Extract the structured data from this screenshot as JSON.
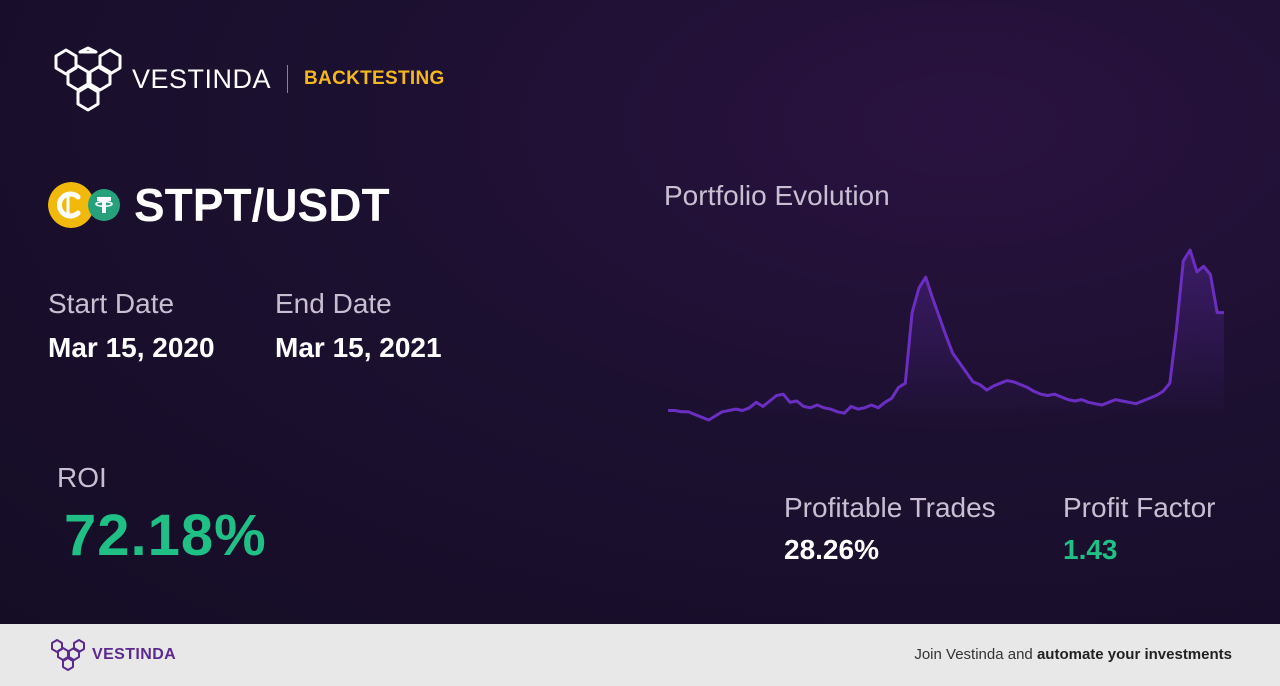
{
  "header": {
    "brand": "VESTINDA",
    "tag": "BACKTESTING"
  },
  "pair": {
    "text": "STPT/USDT",
    "icons": [
      "stpt-coin-icon",
      "tether-coin-icon"
    ],
    "colors": {
      "stpt": "#f0b90b",
      "tether": "#26a17b"
    }
  },
  "dates": {
    "start_label": "Start Date",
    "start_value": "Mar 15, 2020",
    "end_label": "End Date",
    "end_value": "Mar 15, 2021"
  },
  "roi": {
    "label": "ROI",
    "value": "72.18%"
  },
  "chart": {
    "title": "Portfolio Evolution"
  },
  "chart_data": {
    "type": "line",
    "title": "Portfolio Evolution",
    "xlabel": "",
    "ylabel": "",
    "grid": false,
    "values": [
      1.0,
      1.0,
      0.99,
      0.99,
      0.97,
      0.95,
      0.93,
      0.96,
      0.99,
      1.0,
      1.01,
      1.0,
      1.02,
      1.06,
      1.03,
      1.07,
      1.11,
      1.12,
      1.06,
      1.07,
      1.03,
      1.02,
      1.04,
      1.02,
      1.01,
      0.99,
      0.98,
      1.03,
      1.01,
      1.02,
      1.04,
      1.02,
      1.06,
      1.09,
      1.17,
      1.2,
      1.72,
      1.9,
      1.98,
      1.83,
      1.69,
      1.55,
      1.42,
      1.35,
      1.28,
      1.21,
      1.19,
      1.15,
      1.18,
      1.2,
      1.22,
      1.21,
      1.19,
      1.17,
      1.14,
      1.12,
      1.11,
      1.12,
      1.1,
      1.08,
      1.07,
      1.08,
      1.06,
      1.05,
      1.04,
      1.06,
      1.08,
      1.07,
      1.06,
      1.05,
      1.07,
      1.09,
      1.11,
      1.14,
      1.2,
      1.6,
      2.1,
      2.18,
      2.02,
      2.06,
      2.0,
      1.72,
      1.72
    ],
    "color": "#6a2fc2"
  },
  "stats": {
    "profitable_label": "Profitable Trades",
    "profitable_value": "28.26%",
    "factor_label": "Profit Factor",
    "factor_value": "1.43"
  },
  "colors": {
    "accent": "#f4b71e",
    "positive": "#1fbf85",
    "line": "#6a2fc2"
  },
  "footer": {
    "brand": "VESTINDA",
    "cta_prefix": "Join Vestinda and ",
    "cta_bold": "automate your investments"
  }
}
